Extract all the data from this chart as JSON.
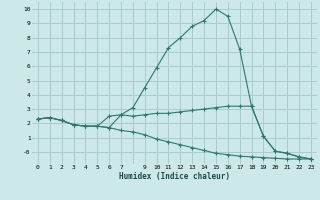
{
  "bg_color": "#cce8e8",
  "grid_color": "#aacccc",
  "line_color": "#2a7a6a",
  "xlabel": "Humidex (Indice chaleur)",
  "xlim": [
    -0.5,
    23.5
  ],
  "ylim": [
    -0.85,
    10.5
  ],
  "xticks": [
    0,
    1,
    2,
    3,
    4,
    5,
    6,
    7,
    8,
    9,
    10,
    11,
    12,
    13,
    14,
    15,
    16,
    17,
    18,
    19,
    20,
    21,
    22,
    23
  ],
  "yticks": [
    0,
    1,
    2,
    3,
    4,
    5,
    6,
    7,
    8,
    9,
    10
  ],
  "xlabels": [
    "0",
    "1",
    "2",
    "3",
    "4",
    "5",
    "6",
    "7",
    "",
    "9",
    "10",
    "11",
    "12",
    "13",
    "14",
    "15",
    "16",
    "17",
    "18",
    "19",
    "20",
    "21",
    "22",
    "23"
  ],
  "ylabels": [
    "-0",
    "1",
    "2",
    "3",
    "4",
    "5",
    "6",
    "7",
    "8",
    "9",
    "10"
  ],
  "series": [
    [
      2.3,
      2.4,
      2.2,
      1.9,
      1.8,
      1.8,
      1.7,
      1.5,
      1.4,
      1.2,
      0.9,
      0.7,
      0.5,
      0.3,
      0.1,
      -0.1,
      -0.2,
      -0.3,
      -0.35,
      -0.4,
      -0.45,
      -0.5,
      -0.5,
      -0.5
    ],
    [
      2.3,
      2.4,
      2.2,
      1.9,
      1.8,
      1.8,
      2.5,
      2.6,
      3.1,
      4.5,
      5.9,
      7.3,
      8.0,
      8.8,
      9.2,
      10.0,
      9.5,
      7.2,
      3.2,
      1.1,
      0.05,
      -0.1,
      -0.35,
      -0.5
    ],
    [
      2.3,
      2.4,
      2.2,
      1.9,
      1.8,
      1.8,
      1.7,
      2.6,
      2.5,
      2.6,
      2.7,
      2.7,
      2.8,
      2.9,
      3.0,
      3.1,
      3.2,
      3.2,
      3.2,
      1.1,
      0.05,
      -0.1,
      -0.35,
      -0.5
    ]
  ]
}
